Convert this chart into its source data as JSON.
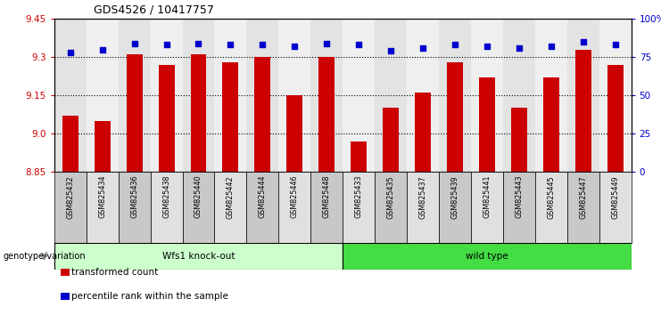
{
  "title": "GDS4526 / 10417757",
  "samples": [
    "GSM825432",
    "GSM825434",
    "GSM825436",
    "GSM825438",
    "GSM825440",
    "GSM825442",
    "GSM825444",
    "GSM825446",
    "GSM825448",
    "GSM825433",
    "GSM825435",
    "GSM825437",
    "GSM825439",
    "GSM825441",
    "GSM825443",
    "GSM825445",
    "GSM825447",
    "GSM825449"
  ],
  "bar_values": [
    9.07,
    9.05,
    9.31,
    9.27,
    9.31,
    9.28,
    9.3,
    9.15,
    9.3,
    8.97,
    9.1,
    9.16,
    9.28,
    9.22,
    9.1,
    9.22,
    9.33,
    9.27
  ],
  "percentile_values": [
    78,
    80,
    84,
    83,
    84,
    83,
    83,
    82,
    84,
    83,
    79,
    81,
    83,
    82,
    81,
    82,
    85,
    83
  ],
  "groups": [
    {
      "label": "Wfs1 knock-out",
      "start": 0,
      "end": 8,
      "color": "#CCFFCC"
    },
    {
      "label": "wild type",
      "start": 9,
      "end": 17,
      "color": "#44DD44"
    }
  ],
  "ylim_left": [
    8.85,
    9.45
  ],
  "ylim_right": [
    0,
    100
  ],
  "yticks_left": [
    8.85,
    9.0,
    9.15,
    9.3,
    9.45
  ],
  "yticks_right": [
    0,
    25,
    50,
    75,
    100
  ],
  "ytick_labels_right": [
    "0",
    "25",
    "50",
    "75",
    "100%"
  ],
  "bar_color": "#CC0000",
  "dot_color": "#0000CC",
  "left_tick_color": "#CC0000",
  "right_tick_color": "#0000CC",
  "group_label": "genotype/variation",
  "legend_items": [
    {
      "color": "#CC0000",
      "label": "transformed count"
    },
    {
      "color": "#0000CC",
      "label": "percentile rank within the sample"
    }
  ],
  "dotted_gridlines": [
    9.0,
    9.15,
    9.3
  ]
}
